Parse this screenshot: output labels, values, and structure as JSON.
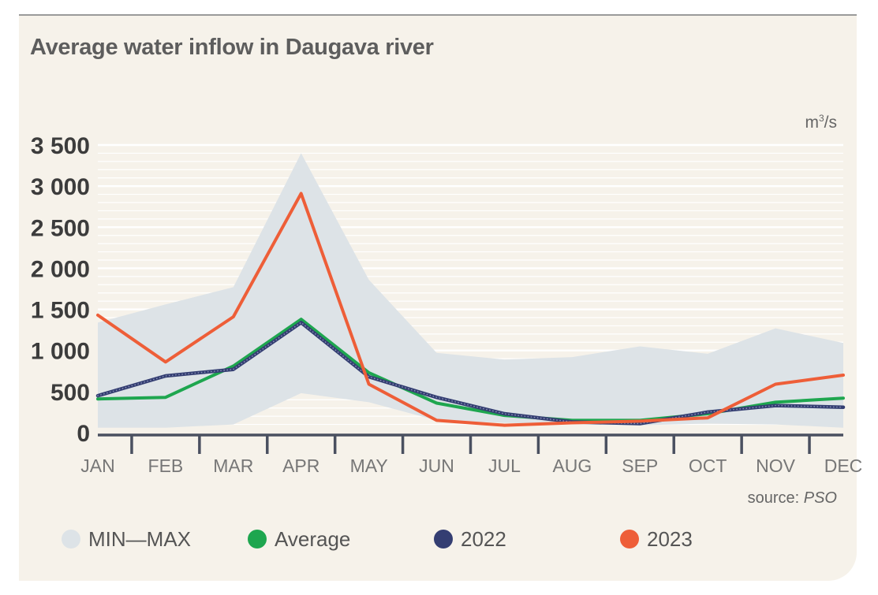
{
  "title": "Average water inflow in Daugava river",
  "unit": {
    "base": "m",
    "exp": "3",
    "suffix": "/s"
  },
  "source": {
    "prefix": "source: ",
    "name": "PSO"
  },
  "legend": [
    {
      "label": "MIN—MAX",
      "color": "#dde3e7"
    },
    {
      "label": "Average",
      "color": "#1ea64f"
    },
    {
      "label": "2022",
      "color": "#343e72"
    },
    {
      "label": "2023",
      "color": "#ee5e38"
    }
  ],
  "chart_data": {
    "type": "line",
    "title": "Average water inflow in Daugava river",
    "ylabel": "m³/s",
    "categories": [
      "JAN",
      "FEB",
      "MAR",
      "APR",
      "MAY",
      "JUN",
      "JUL",
      "AUG",
      "SEP",
      "OCT",
      "NOV",
      "DEC"
    ],
    "ylim": [
      0,
      3500
    ],
    "yticks": [
      {
        "value": 0,
        "label": "0"
      },
      {
        "value": 500,
        "label": "500"
      },
      {
        "value": 1000,
        "label": "1 000"
      },
      {
        "value": 1500,
        "label": "1 500"
      },
      {
        "value": 2000,
        "label": "2 000"
      },
      {
        "value": 2500,
        "label": "2 500"
      },
      {
        "value": 3000,
        "label": "3 000"
      },
      {
        "value": 3500,
        "label": "3 500"
      }
    ],
    "grid": true,
    "band": {
      "name": "MIN—MAX",
      "color": "#dde3e7",
      "min": [
        60,
        60,
        100,
        480,
        370,
        150,
        120,
        100,
        90,
        110,
        100,
        60
      ],
      "max": [
        1340,
        1560,
        1770,
        3400,
        1860,
        970,
        890,
        920,
        1050,
        960,
        1270,
        1090
      ]
    },
    "series": [
      {
        "name": "Average",
        "color": "#1ea64f",
        "values": [
          410,
          430,
          810,
          1380,
          730,
          360,
          210,
          150,
          150,
          230,
          370,
          420
        ]
      },
      {
        "name": "2022",
        "color": "#343e72",
        "values": [
          450,
          690,
          770,
          1340,
          680,
          430,
          230,
          130,
          110,
          250,
          330,
          310
        ]
      },
      {
        "name": "2023",
        "color": "#ee5e38",
        "values": [
          1430,
          860,
          1410,
          2910,
          590,
          150,
          90,
          120,
          140,
          180,
          590,
          700
        ]
      }
    ]
  }
}
